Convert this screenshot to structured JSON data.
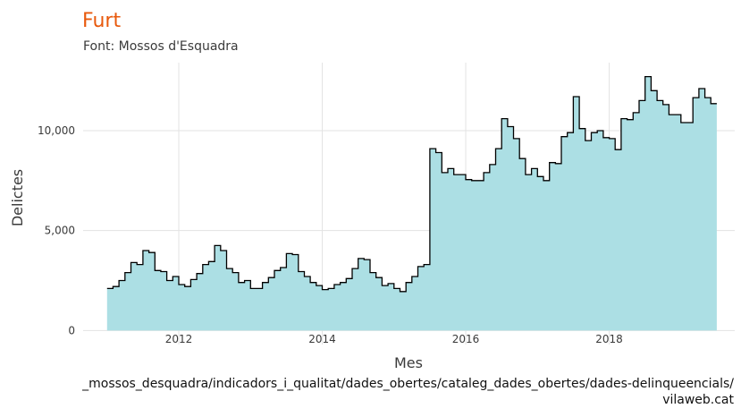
{
  "colors": {
    "title": "#E8590C",
    "subtitle": "#3a3a3a",
    "tick": "#3a3a3a",
    "axis_title": "#3a3a3a",
    "caption": "#111111",
    "grid": "#e3e3e3",
    "area_fill": "#ACDFE4",
    "step_line": "#000000"
  },
  "caption": {
    "line1": "_mossos_desquadra/indicadors_i_qualitat/dades_obertes/cataleg_dades_obertes/dades-delinqueencials/",
    "line2": "vilaweb.cat"
  },
  "chart_data": {
    "type": "area",
    "title": "Furt",
    "subtitle": "Font: Mossos d'Esquadra",
    "xlabel": "Mes",
    "ylabel": "Delictes",
    "x_ticks": [
      "2012",
      "2014",
      "2016",
      "2018"
    ],
    "y_ticks": [
      "0",
      "5,000",
      "10,000"
    ],
    "y_tick_values": [
      0,
      5000,
      10000
    ],
    "xlim": [
      "2010-09",
      "2019-10"
    ],
    "ylim": [
      -700,
      13400
    ],
    "grid": true,
    "legend": "none",
    "x": [
      "2011-01",
      "2011-02",
      "2011-03",
      "2011-04",
      "2011-05",
      "2011-06",
      "2011-07",
      "2011-08",
      "2011-09",
      "2011-10",
      "2011-11",
      "2011-12",
      "2012-01",
      "2012-02",
      "2012-03",
      "2012-04",
      "2012-05",
      "2012-06",
      "2012-07",
      "2012-08",
      "2012-09",
      "2012-10",
      "2012-11",
      "2012-12",
      "2013-01",
      "2013-02",
      "2013-03",
      "2013-04",
      "2013-05",
      "2013-06",
      "2013-07",
      "2013-08",
      "2013-09",
      "2013-10",
      "2013-11",
      "2013-12",
      "2014-01",
      "2014-02",
      "2014-03",
      "2014-04",
      "2014-05",
      "2014-06",
      "2014-07",
      "2014-08",
      "2014-09",
      "2014-10",
      "2014-11",
      "2014-12",
      "2015-01",
      "2015-02",
      "2015-03",
      "2015-04",
      "2015-05",
      "2015-06",
      "2015-07",
      "2015-08",
      "2015-09",
      "2015-10",
      "2015-11",
      "2015-12",
      "2016-01",
      "2016-02",
      "2016-03",
      "2016-04",
      "2016-05",
      "2016-06",
      "2016-07",
      "2016-08",
      "2016-09",
      "2016-10",
      "2016-11",
      "2016-12",
      "2017-01",
      "2017-02",
      "2017-03",
      "2017-04",
      "2017-05",
      "2017-06",
      "2017-07",
      "2017-08",
      "2017-09",
      "2017-10",
      "2017-11",
      "2017-12",
      "2018-01",
      "2018-02",
      "2018-03",
      "2018-04",
      "2018-05",
      "2018-06",
      "2018-07",
      "2018-08",
      "2018-09",
      "2018-10",
      "2018-11",
      "2018-12",
      "2019-01",
      "2019-02",
      "2019-03",
      "2019-04",
      "2019-05",
      "2019-06"
    ],
    "values": [
      2100,
      2200,
      2500,
      2900,
      3400,
      3300,
      4000,
      3900,
      3000,
      2950,
      2500,
      2700,
      2300,
      2200,
      2550,
      2850,
      3300,
      3450,
      4250,
      4000,
      3100,
      2900,
      2400,
      2500,
      2100,
      2100,
      2400,
      2650,
      3000,
      3150,
      3850,
      3800,
      2950,
      2700,
      2400,
      2250,
      2050,
      2100,
      2300,
      2400,
      2600,
      3100,
      3600,
      3550,
      2900,
      2650,
      2250,
      2350,
      2100,
      1950,
      2400,
      2700,
      3200,
      3300,
      9100,
      8900,
      7900,
      8100,
      7800,
      7800,
      7550,
      7500,
      7500,
      7900,
      8300,
      9100,
      10600,
      10200,
      9600,
      8600,
      7800,
      8100,
      7700,
      7500,
      8400,
      8350,
      9700,
      9900,
      11700,
      10100,
      9500,
      9900,
      10000,
      9650,
      9600,
      9050,
      10600,
      10550,
      10900,
      11500,
      12700,
      12000,
      11500,
      11300,
      10800,
      10800,
      10400,
      10400,
      11650,
      12100,
      11650,
      11350
    ]
  }
}
